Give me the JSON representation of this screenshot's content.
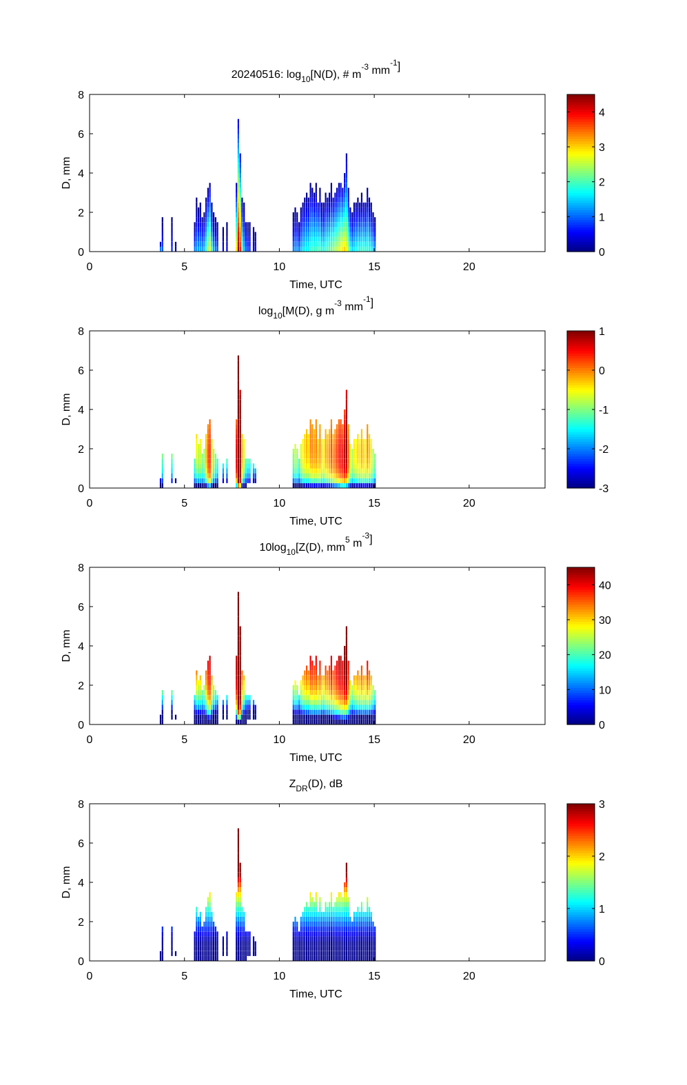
{
  "chart_data": {
    "type": "heatmap",
    "date": "20240516",
    "xlim": [
      0,
      24
    ],
    "ylim": [
      0,
      8
    ],
    "xticks": [
      0,
      5,
      10,
      15,
      20
    ],
    "yticks": [
      0,
      2,
      4,
      6,
      8
    ],
    "time_bin_h": 0.1,
    "d_bin_mm": 0.25,
    "columns_note": "[time_h, Dmax_mm, peak log10 N]",
    "columns": [
      [
        3.7,
        0.5,
        1.5
      ],
      [
        3.8,
        1.7,
        1.0
      ],
      [
        4.3,
        1.7,
        0.8
      ],
      [
        4.5,
        0.5,
        0.3
      ],
      [
        5.5,
        1.5,
        1.2
      ],
      [
        5.6,
        2.7,
        1.3
      ],
      [
        5.7,
        2.2,
        1.4
      ],
      [
        5.8,
        2.4,
        1.4
      ],
      [
        5.9,
        1.8,
        1.3
      ],
      [
        6.0,
        2.0,
        1.5
      ],
      [
        6.1,
        2.8,
        2.0
      ],
      [
        6.2,
        3.2,
        2.6
      ],
      [
        6.3,
        3.5,
        2.8
      ],
      [
        6.4,
        2.4,
        1.8
      ],
      [
        6.5,
        2.0,
        1.4
      ],
      [
        6.6,
        1.8,
        1.2
      ],
      [
        6.7,
        1.5,
        1.0
      ],
      [
        7.0,
        1.3,
        0.6
      ],
      [
        7.2,
        1.4,
        0.6
      ],
      [
        7.7,
        3.5,
        3.0
      ],
      [
        7.8,
        6.7,
        4.5
      ],
      [
        7.9,
        5.0,
        4.0
      ],
      [
        8.0,
        2.8,
        2.0
      ],
      [
        8.1,
        2.4,
        1.4
      ],
      [
        8.2,
        1.6,
        1.0
      ],
      [
        8.3,
        1.4,
        0.8
      ],
      [
        8.4,
        1.5,
        0.8
      ],
      [
        8.6,
        1.2,
        0.5
      ],
      [
        8.7,
        1.0,
        0.4
      ],
      [
        10.7,
        1.9,
        1.2
      ],
      [
        10.8,
        2.2,
        1.3
      ],
      [
        10.9,
        2.0,
        1.3
      ],
      [
        11.0,
        1.5,
        1.2
      ],
      [
        11.1,
        2.3,
        1.5
      ],
      [
        11.2,
        2.6,
        1.6
      ],
      [
        11.3,
        2.8,
        1.7
      ],
      [
        11.4,
        3.0,
        1.8
      ],
      [
        11.5,
        2.7,
        1.8
      ],
      [
        11.6,
        3.5,
        1.9
      ],
      [
        11.7,
        3.3,
        2.0
      ],
      [
        11.8,
        3.0,
        2.0
      ],
      [
        11.9,
        3.4,
        2.0
      ],
      [
        12.0,
        2.6,
        2.1
      ],
      [
        12.1,
        3.2,
        2.0
      ],
      [
        12.2,
        2.5,
        1.9
      ],
      [
        12.3,
        2.4,
        1.9
      ],
      [
        12.4,
        3.0,
        2.0
      ],
      [
        12.5,
        2.8,
        2.1
      ],
      [
        12.6,
        2.9,
        2.2
      ],
      [
        12.7,
        3.4,
        2.3
      ],
      [
        12.8,
        2.8,
        2.4
      ],
      [
        12.9,
        3.1,
        2.5
      ],
      [
        13.0,
        3.3,
        2.6
      ],
      [
        13.1,
        3.5,
        2.7
      ],
      [
        13.2,
        3.6,
        2.9
      ],
      [
        13.3,
        3.3,
        3.0
      ],
      [
        13.4,
        3.9,
        3.1
      ],
      [
        13.5,
        5.1,
        2.8
      ],
      [
        13.6,
        3.2,
        2.4
      ],
      [
        13.7,
        2.3,
        1.8
      ],
      [
        13.8,
        2.0,
        1.6
      ],
      [
        13.9,
        2.6,
        1.7
      ],
      [
        14.0,
        2.5,
        1.8
      ],
      [
        14.1,
        2.7,
        1.9
      ],
      [
        14.2,
        2.5,
        1.9
      ],
      [
        14.3,
        2.9,
        2.0
      ],
      [
        14.4,
        2.6,
        2.0
      ],
      [
        14.5,
        2.4,
        1.9
      ],
      [
        14.6,
        3.3,
        2.0
      ],
      [
        14.7,
        2.8,
        1.9
      ],
      [
        14.8,
        2.5,
        1.8
      ],
      [
        14.9,
        2.0,
        1.6
      ],
      [
        15.0,
        1.8,
        1.3
      ]
    ],
    "panels": [
      {
        "id": "nd",
        "title": [
          [
            "20240516: log",
            ""
          ],
          [
            "10",
            "sub"
          ],
          [
            "[N(D), # m",
            ""
          ],
          [
            "-3",
            "sup"
          ],
          [
            " mm",
            ""
          ],
          [
            "-1",
            "sup"
          ],
          [
            "]",
            ""
          ]
        ],
        "xlabel": "Time, UTC",
        "ylabel": "D, mm",
        "clim": [
          0,
          4.5
        ],
        "cticks": [
          0,
          1,
          2,
          3,
          4
        ]
      },
      {
        "id": "md",
        "title": [
          [
            "log",
            ""
          ],
          [
            "10",
            "sub"
          ],
          [
            "[M(D), g m",
            ""
          ],
          [
            "-3",
            "sup"
          ],
          [
            " mm",
            ""
          ],
          [
            "-1",
            "sup"
          ],
          [
            "]",
            ""
          ]
        ],
        "xlabel": "Time, UTC",
        "ylabel": "D, mm",
        "clim": [
          -3,
          1
        ],
        "cticks": [
          -3,
          -2,
          -1,
          0,
          1
        ]
      },
      {
        "id": "zd",
        "title": [
          [
            "10log",
            ""
          ],
          [
            "10",
            "sub"
          ],
          [
            "[Z(D),  mm",
            ""
          ],
          [
            "5",
            "sup"
          ],
          [
            " m",
            ""
          ],
          [
            "-3",
            "sup"
          ],
          [
            "]",
            ""
          ]
        ],
        "xlabel": "Time, UTC",
        "ylabel": "D, mm",
        "clim": [
          0,
          45
        ],
        "cticks": [
          0,
          10,
          20,
          30,
          40
        ]
      },
      {
        "id": "zdr",
        "title": [
          [
            "Z",
            ""
          ],
          [
            "DR",
            "sub"
          ],
          [
            "(D), dB",
            ""
          ]
        ],
        "xlabel": "Time, UTC",
        "ylabel": "D, mm",
        "clim": [
          0,
          3
        ],
        "cticks": [
          0,
          1,
          2,
          3
        ]
      }
    ]
  }
}
